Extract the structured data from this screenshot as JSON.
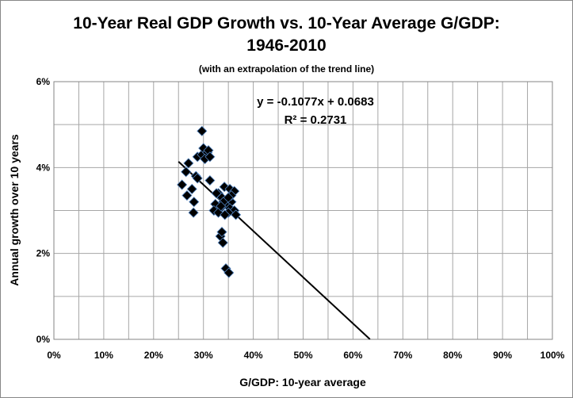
{
  "chart_data": {
    "type": "scatter",
    "title_line1": "10-Year Real GDP Growth vs. 10-Year Average G/GDP:",
    "title_line2": "1946-2010",
    "subtitle": "(with an extrapolation of the trend line)",
    "xlabel": "G/GDP: 10-year average",
    "ylabel": "Annual growth over 10 years",
    "xlim": [
      0,
      100
    ],
    "ylim": [
      0,
      6
    ],
    "x_ticks": [
      "0%",
      "10%",
      "20%",
      "30%",
      "40%",
      "50%",
      "60%",
      "70%",
      "80%",
      "90%",
      "100%"
    ],
    "y_ticks": [
      "0%",
      "2%",
      "4%",
      "6%"
    ],
    "grid": true,
    "marker": "diamond",
    "marker_color": "#000000",
    "marker_edge_color": "#4f81bd",
    "trendline": {
      "slope": -0.1077,
      "intercept": 0.0683,
      "x_range": [
        25,
        63.4
      ],
      "color": "#000000"
    },
    "equation_label": "y = -0.1077x + 0.0683",
    "r2_label": "R² = 0.2731",
    "points": [
      [
        25.7,
        3.6
      ],
      [
        26.5,
        3.9
      ],
      [
        27,
        4.1
      ],
      [
        26.7,
        3.35
      ],
      [
        27.7,
        3.5
      ],
      [
        28.1,
        3.2
      ],
      [
        28,
        2.95
      ],
      [
        28.5,
        3.8
      ],
      [
        28.8,
        3.75
      ],
      [
        28.8,
        4.25
      ],
      [
        29.7,
        4.3
      ],
      [
        29.7,
        4.85
      ],
      [
        30,
        4.45
      ],
      [
        30.8,
        4.35
      ],
      [
        31,
        4.4
      ],
      [
        30.3,
        4.2
      ],
      [
        31.3,
        4.25
      ],
      [
        31.3,
        3.7
      ],
      [
        34.2,
        3.55
      ],
      [
        35.3,
        3.5
      ],
      [
        36.2,
        3.45
      ],
      [
        33,
        3.4
      ],
      [
        33.7,
        3.3
      ],
      [
        34.6,
        3.25
      ],
      [
        35.6,
        3.2
      ],
      [
        32.4,
        3.15
      ],
      [
        33.4,
        3.05
      ],
      [
        34.3,
        3.15
      ],
      [
        35.3,
        3.05
      ],
      [
        36.2,
        3.0
      ],
      [
        32.1,
        3.0
      ],
      [
        33,
        2.95
      ],
      [
        35,
        2.95
      ],
      [
        36.5,
        2.9
      ],
      [
        32.6,
        3.4
      ],
      [
        35.6,
        3.35
      ],
      [
        34.3,
        2.9
      ],
      [
        34,
        3.2
      ],
      [
        35,
        3.3
      ],
      [
        33.5,
        3.1
      ],
      [
        33.4,
        2.4
      ],
      [
        33.7,
        2.5
      ],
      [
        33.9,
        2.25
      ],
      [
        34.5,
        1.65
      ],
      [
        35.1,
        1.55
      ]
    ]
  }
}
